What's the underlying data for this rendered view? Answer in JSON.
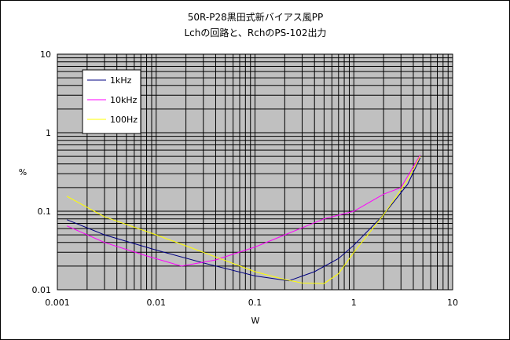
{
  "chart_data": {
    "type": "line",
    "title_lines": [
      "50R-P28黒田式新バイアス風PP",
      "Lchの回路と、RchのPS-102出力"
    ],
    "xlabel": "W",
    "ylabel": "%",
    "x_scale": "log",
    "y_scale": "log",
    "xlim": [
      0.001,
      10
    ],
    "ylim": [
      0.01,
      10
    ],
    "x_ticks": [
      "0.001",
      "0.01",
      "0.1",
      "1",
      "10"
    ],
    "y_ticks": [
      "10",
      "1",
      "0.1",
      "0.01"
    ],
    "x_tick_values": [
      0.001,
      0.01,
      0.1,
      1,
      10
    ],
    "y_tick_values": [
      10,
      1,
      0.1,
      0.01
    ],
    "grid": true,
    "plot_background": "#c0c0c0",
    "legend_position": "top-left",
    "series": [
      {
        "name": "1kHz",
        "color": "#000080",
        "x": [
          0.00125,
          0.003,
          0.01,
          0.03,
          0.1,
          0.22,
          0.4,
          0.7,
          1.0,
          2.0,
          3.5,
          4.7
        ],
        "y": [
          0.078,
          0.05,
          0.032,
          0.022,
          0.015,
          0.013,
          0.017,
          0.025,
          0.037,
          0.09,
          0.22,
          0.48
        ]
      },
      {
        "name": "10kHz",
        "color": "#ff00ff",
        "x": [
          0.00125,
          0.003,
          0.008,
          0.018,
          0.04,
          0.1,
          0.2,
          0.5,
          1.0,
          2.0,
          3.0,
          4.7
        ],
        "y": [
          0.065,
          0.04,
          0.027,
          0.02,
          0.024,
          0.035,
          0.05,
          0.08,
          0.1,
          0.165,
          0.2,
          0.52
        ]
      },
      {
        "name": "100Hz",
        "color": "#ffff00",
        "x": [
          0.00125,
          0.003,
          0.01,
          0.03,
          0.1,
          0.2,
          0.3,
          0.5,
          0.7,
          1.0,
          2.0,
          3.5,
          4.7
        ],
        "y": [
          0.155,
          0.085,
          0.05,
          0.03,
          0.017,
          0.0135,
          0.0122,
          0.012,
          0.016,
          0.03,
          0.09,
          0.25,
          0.5
        ]
      }
    ]
  }
}
